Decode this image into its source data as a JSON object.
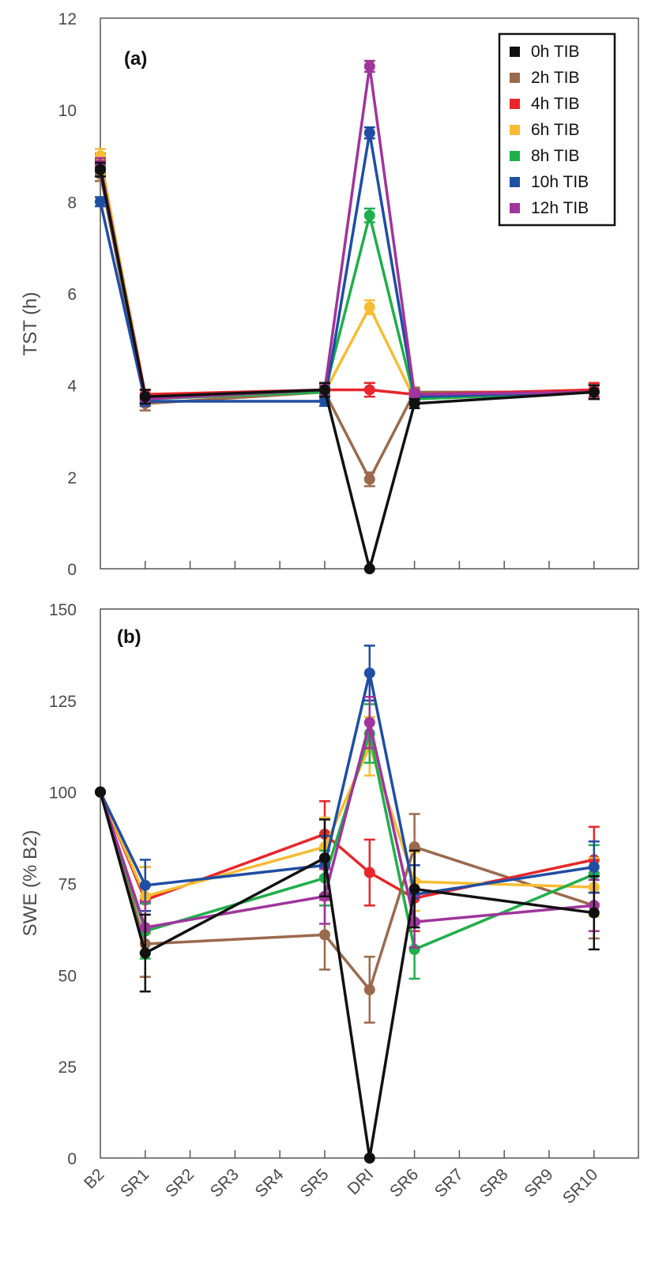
{
  "categories": [
    "B2",
    "SR1",
    "SR2",
    "SR3",
    "SR4",
    "SR5",
    "DRI",
    "SR6",
    "SR7",
    "SR8",
    "SR9",
    "SR10"
  ],
  "chart_data": [
    {
      "type": "line",
      "panel_label": "(a)",
      "ylabel": "TST (h)",
      "ylim": [
        0,
        12
      ],
      "yticks": [
        0,
        2,
        4,
        6,
        8,
        10,
        12
      ],
      "legend_position": "top-right",
      "grid": false,
      "series": [
        {
          "name": "0h TIB",
          "color": "#111111",
          "points": [
            {
              "x": "B2",
              "y": 8.7,
              "err": 0.15
            },
            {
              "x": "SR1",
              "y": 3.75,
              "err": 0.15
            },
            {
              "x": "SR5",
              "y": 3.9,
              "err": 0.15
            },
            {
              "x": "DRI",
              "y": 0.0,
              "err": 0.0
            },
            {
              "x": "SR6",
              "y": 3.6,
              "err": 0.1
            },
            {
              "x": "SR10",
              "y": 3.85,
              "err": 0.15
            }
          ]
        },
        {
          "name": "2h TIB",
          "color": "#9b6a4c",
          "points": [
            {
              "x": "B2",
              "y": 8.6,
              "err": 0.15
            },
            {
              "x": "SR1",
              "y": 3.6,
              "err": 0.15
            },
            {
              "x": "SR5",
              "y": 3.85,
              "err": 0.15
            },
            {
              "x": "DRI",
              "y": 1.95,
              "err": 0.15
            },
            {
              "x": "SR6",
              "y": 3.85,
              "err": 0.1
            },
            {
              "x": "SR10",
              "y": 3.85,
              "err": 0.15
            }
          ]
        },
        {
          "name": "4h TIB",
          "color": "#e8262b",
          "points": [
            {
              "x": "B2",
              "y": 8.9,
              "err": 0.15
            },
            {
              "x": "SR1",
              "y": 3.8,
              "err": 0.1
            },
            {
              "x": "SR5",
              "y": 3.9,
              "err": 0.1
            },
            {
              "x": "DRI",
              "y": 3.9,
              "err": 0.15
            },
            {
              "x": "SR6",
              "y": 3.8,
              "err": 0.1
            },
            {
              "x": "SR10",
              "y": 3.9,
              "err": 0.15
            }
          ]
        },
        {
          "name": "6h TIB",
          "color": "#f7bc33",
          "points": [
            {
              "x": "B2",
              "y": 9.0,
              "err": 0.15
            },
            {
              "x": "SR1",
              "y": 3.7,
              "err": 0.1
            },
            {
              "x": "SR5",
              "y": 3.85,
              "err": 0.1
            },
            {
              "x": "DRI",
              "y": 5.7,
              "err": 0.15
            },
            {
              "x": "SR6",
              "y": 3.7,
              "err": 0.1
            },
            {
              "x": "SR10",
              "y": 3.85,
              "err": 0.15
            }
          ]
        },
        {
          "name": "8h TIB",
          "color": "#1faf4b",
          "points": [
            {
              "x": "B2",
              "y": 8.8,
              "err": 0.15
            },
            {
              "x": "SR1",
              "y": 3.7,
              "err": 0.1
            },
            {
              "x": "SR5",
              "y": 3.85,
              "err": 0.1
            },
            {
              "x": "DRI",
              "y": 7.7,
              "err": 0.15
            },
            {
              "x": "SR6",
              "y": 3.7,
              "err": 0.1
            },
            {
              "x": "SR10",
              "y": 3.85,
              "err": 0.15
            }
          ]
        },
        {
          "name": "10h TIB",
          "color": "#1f4ea3",
          "points": [
            {
              "x": "B2",
              "y": 8.0,
              "err": 0.1
            },
            {
              "x": "SR1",
              "y": 3.65,
              "err": 0.1
            },
            {
              "x": "SR5",
              "y": 3.65,
              "err": 0.1
            },
            {
              "x": "DRI",
              "y": 9.5,
              "err": 0.12
            },
            {
              "x": "SR6",
              "y": 3.75,
              "err": 0.1
            },
            {
              "x": "SR10",
              "y": 3.85,
              "err": 0.15
            }
          ]
        },
        {
          "name": "12h TIB",
          "color": "#a0359b",
          "points": [
            {
              "x": "B2",
              "y": 8.8,
              "err": 0.15
            },
            {
              "x": "SR1",
              "y": 3.7,
              "err": 0.1
            },
            {
              "x": "SR5",
              "y": 3.9,
              "err": 0.1
            },
            {
              "x": "DRI",
              "y": 10.95,
              "err": 0.12
            },
            {
              "x": "SR6",
              "y": 3.8,
              "err": 0.1
            },
            {
              "x": "SR10",
              "y": 3.85,
              "err": 0.15
            }
          ]
        }
      ]
    },
    {
      "type": "line",
      "panel_label": "(b)",
      "ylabel": "SWE (% B2)",
      "ylim": [
        0,
        150
      ],
      "yticks": [
        0,
        25,
        50,
        75,
        100,
        125,
        150
      ],
      "grid": false,
      "series": [
        {
          "name": "0h TIB",
          "color": "#111111",
          "points": [
            {
              "x": "B2",
              "y": 100,
              "err": 0
            },
            {
              "x": "SR1",
              "y": 56,
              "err": 10.5
            },
            {
              "x": "SR5",
              "y": 82,
              "err": 10.5
            },
            {
              "x": "DRI",
              "y": 0,
              "err": 0
            },
            {
              "x": "SR6",
              "y": 73.5,
              "err": 10.5
            },
            {
              "x": "SR10",
              "y": 67,
              "err": 10
            }
          ]
        },
        {
          "name": "2h TIB",
          "color": "#9b6a4c",
          "points": [
            {
              "x": "B2",
              "y": 100,
              "err": 0
            },
            {
              "x": "SR1",
              "y": 58.5,
              "err": 9
            },
            {
              "x": "SR5",
              "y": 61,
              "err": 9.5
            },
            {
              "x": "DRI",
              "y": 46,
              "err": 9
            },
            {
              "x": "SR6",
              "y": 85,
              "err": 9
            },
            {
              "x": "SR10",
              "y": 69,
              "err": 9
            }
          ]
        },
        {
          "name": "4h TIB",
          "color": "#e8262b",
          "points": [
            {
              "x": "B2",
              "y": 100,
              "err": 0
            },
            {
              "x": "SR1",
              "y": 70.5,
              "err": 9
            },
            {
              "x": "SR5",
              "y": 88.5,
              "err": 9
            },
            {
              "x": "DRI",
              "y": 78,
              "err": 9
            },
            {
              "x": "SR6",
              "y": 71,
              "err": 9
            },
            {
              "x": "SR10",
              "y": 81.5,
              "err": 9
            }
          ]
        },
        {
          "name": "6h TIB",
          "color": "#f7bc33",
          "points": [
            {
              "x": "B2",
              "y": 100,
              "err": 0
            },
            {
              "x": "SR1",
              "y": 71.5,
              "err": 8
            },
            {
              "x": "SR5",
              "y": 85,
              "err": 8
            },
            {
              "x": "DRI",
              "y": 112.5,
              "err": 8
            },
            {
              "x": "SR6",
              "y": 75.5,
              "err": 8
            },
            {
              "x": "SR10",
              "y": 74,
              "err": 8
            }
          ]
        },
        {
          "name": "8h TIB",
          "color": "#1faf4b",
          "points": [
            {
              "x": "B2",
              "y": 100,
              "err": 0
            },
            {
              "x": "SR1",
              "y": 62,
              "err": 7.5
            },
            {
              "x": "SR5",
              "y": 76.5,
              "err": 7.5
            },
            {
              "x": "DRI",
              "y": 116,
              "err": 8
            },
            {
              "x": "SR6",
              "y": 57,
              "err": 8
            },
            {
              "x": "SR10",
              "y": 77.5,
              "err": 8
            }
          ]
        },
        {
          "name": "10h TIB",
          "color": "#1f4ea3",
          "points": [
            {
              "x": "B2",
              "y": 100,
              "err": 0
            },
            {
              "x": "SR1",
              "y": 74.5,
              "err": 7
            },
            {
              "x": "SR5",
              "y": 80,
              "err": 8
            },
            {
              "x": "DRI",
              "y": 132.5,
              "err": 7.5
            },
            {
              "x": "SR6",
              "y": 72,
              "err": 8
            },
            {
              "x": "SR10",
              "y": 79.5,
              "err": 7
            }
          ]
        },
        {
          "name": "12h TIB",
          "color": "#a0359b",
          "points": [
            {
              "x": "B2",
              "y": 100,
              "err": 0
            },
            {
              "x": "SR1",
              "y": 63,
              "err": 7
            },
            {
              "x": "SR5",
              "y": 71.5,
              "err": 7.5
            },
            {
              "x": "DRI",
              "y": 119,
              "err": 7
            },
            {
              "x": "SR6",
              "y": 64.5,
              "err": 7
            },
            {
              "x": "SR10",
              "y": 69,
              "err": 7
            }
          ]
        }
      ]
    }
  ]
}
